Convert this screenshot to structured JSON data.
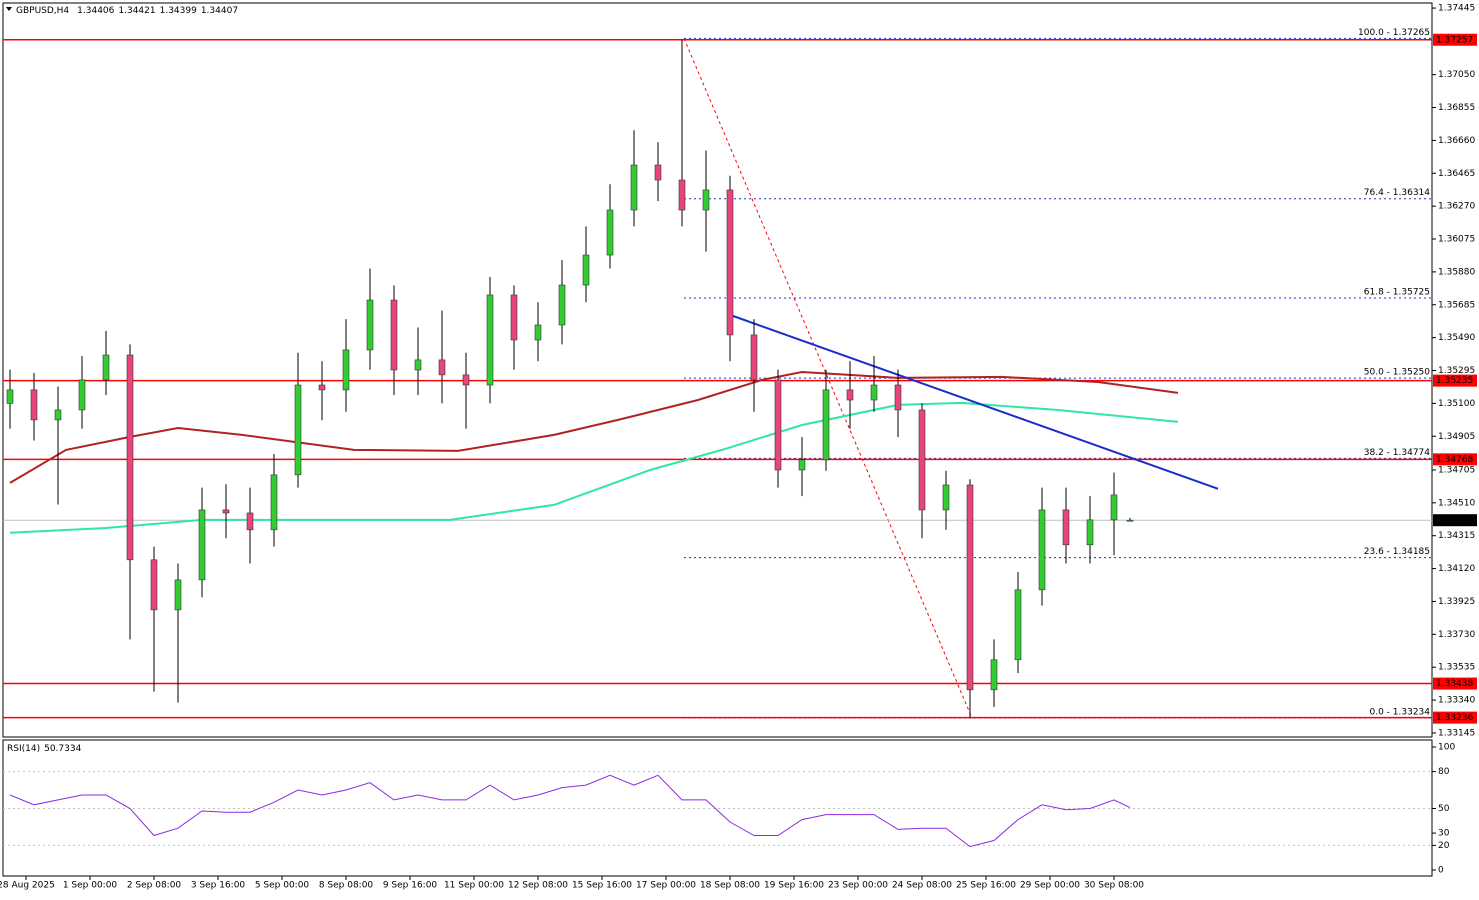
{
  "chart_data": [
    {
      "type": "candlestick",
      "title": "GBPUSD,H4",
      "x": [
        0,
        3,
        6,
        9,
        12,
        15,
        18,
        21,
        24,
        27,
        30,
        33,
        36,
        39,
        42,
        45,
        48,
        51,
        54,
        57,
        60,
        63,
        66,
        69,
        72,
        75,
        78,
        81,
        84,
        87,
        90,
        93,
        96,
        99,
        102,
        105,
        108,
        111,
        114,
        117,
        120,
        123,
        126,
        129,
        132,
        135,
        138,
        140
      ],
      "open": [
        1.351,
        1.3518,
        1.35002,
        1.35061,
        1.35239,
        1.35387,
        1.34172,
        1.33875,
        1.34053,
        1.34468,
        1.3445,
        1.3435,
        1.34676,
        1.35209,
        1.3518,
        1.35417,
        1.35713,
        1.35298,
        1.35358,
        1.35269,
        1.35209,
        1.35743,
        1.35476,
        1.35565,
        1.35802,
        1.3598,
        1.36247,
        1.36514,
        1.36425,
        1.36247,
        1.36366,
        1.35506,
        1.35239,
        1.34705,
        1.34765,
        1.3518,
        1.3512,
        1.35209,
        1.35061,
        1.34468,
        1.34616,
        1.33401,
        1.33579,
        1.33994,
        1.34468,
        1.34261,
        1.34409,
        1.34406
      ],
      "high": [
        1.353,
        1.3528,
        1.352,
        1.3538,
        1.3553,
        1.3545,
        1.3425,
        1.3415,
        1.346,
        1.3462,
        1.346,
        1.348,
        1.354,
        1.3535,
        1.356,
        1.359,
        1.358,
        1.3555,
        1.3565,
        1.354,
        1.3585,
        1.358,
        1.357,
        1.3595,
        1.3615,
        1.364,
        1.3672,
        1.3665,
        1.37257,
        1.366,
        1.3645,
        1.356,
        1.353,
        1.349,
        1.353,
        1.3535,
        1.3538,
        1.353,
        1.351,
        1.347,
        1.3465,
        1.337,
        1.341,
        1.346,
        1.346,
        1.3455,
        1.3469,
        1.34421
      ],
      "low": [
        1.3495,
        1.3488,
        1.345,
        1.3495,
        1.3515,
        1.337,
        1.3339,
        1.33325,
        1.3395,
        1.343,
        1.3415,
        1.3425,
        1.346,
        1.35,
        1.3505,
        1.353,
        1.3515,
        1.3515,
        1.351,
        1.3495,
        1.351,
        1.353,
        1.3535,
        1.3545,
        1.357,
        1.359,
        1.3615,
        1.363,
        1.3615,
        1.36,
        1.3535,
        1.3505,
        1.346,
        1.3455,
        1.347,
        1.3495,
        1.3505,
        1.349,
        1.343,
        1.3435,
        1.33236,
        1.333,
        1.335,
        1.339,
        1.3415,
        1.3415,
        1.342,
        1.34399
      ],
      "close": [
        1.3518,
        1.35002,
        1.35061,
        1.35239,
        1.35387,
        1.34172,
        1.33875,
        1.34053,
        1.34468,
        1.3445,
        1.3435,
        1.34676,
        1.35209,
        1.3518,
        1.35417,
        1.35713,
        1.35298,
        1.35358,
        1.35269,
        1.35209,
        1.35743,
        1.35476,
        1.35565,
        1.35802,
        1.3598,
        1.36247,
        1.36514,
        1.36425,
        1.36247,
        1.36366,
        1.35506,
        1.35239,
        1.34705,
        1.34765,
        1.3518,
        1.3512,
        1.35209,
        1.35061,
        1.34468,
        1.34616,
        1.33401,
        1.33579,
        1.33994,
        1.34468,
        1.34261,
        1.34409,
        1.34557,
        1.34407
      ],
      "up_color": "#32cd32",
      "down_color": "#e8457d",
      "xlim": [
        -0.875,
        177.75
      ],
      "ylim": [
        1.33121,
        1.37475
      ],
      "yticks": [
        1.37445,
        {
          "value": 1.3705,
          "label": "1.37050"
        },
        1.36855,
        {
          "value": 1.3666,
          "label": "1.36660"
        },
        1.36465,
        {
          "value": 1.3627,
          "label": "1.36270"
        },
        1.36075,
        {
          "value": 1.3588,
          "label": "1.35880"
        },
        1.35685,
        {
          "value": 1.3549,
          "label": "1.35490"
        },
        1.35295,
        {
          "value": 1.351,
          "label": "1.35100"
        },
        1.34905,
        1.34705,
        {
          "value": 1.3451,
          "label": "1.34510"
        },
        1.34315,
        {
          "value": 1.3412,
          "label": "1.34120"
        },
        1.33925,
        {
          "value": 1.3373,
          "label": "1.33730"
        },
        1.33535,
        {
          "value": 1.3334,
          "label": "1.33340"
        },
        1.33145
      ],
      "xticks": [
        {
          "value": 2,
          "label": "28 Aug 2025"
        },
        {
          "value": 10,
          "label": "1 Sep 00:00"
        },
        {
          "value": 18,
          "label": "2 Sep 08:00"
        },
        {
          "value": 26,
          "label": "3 Sep 16:00"
        },
        {
          "value": 34,
          "label": "5 Sep 00:00"
        },
        {
          "value": 42,
          "label": "8 Sep 08:00"
        },
        {
          "value": 50,
          "label": "9 Sep 16:00"
        },
        {
          "value": 58,
          "label": "11 Sep 00:00"
        },
        {
          "value": 66,
          "label": "12 Sep 08:00"
        },
        {
          "value": 74,
          "label": "15 Sep 16:00"
        },
        {
          "value": 82,
          "label": "17 Sep 00:00"
        },
        {
          "value": 90,
          "label": "18 Sep 08:00"
        },
        {
          "value": 98,
          "label": "19 Sep 16:00"
        },
        {
          "value": 106,
          "label": "23 Sep 00:00"
        },
        {
          "value": 114,
          "label": "24 Sep 08:00"
        },
        {
          "value": 122,
          "label": "25 Sep 16:00"
        },
        {
          "value": 130,
          "label": "29 Sep 00:00"
        },
        {
          "value": 138,
          "label": "30 Sep 08:00"
        }
      ],
      "moving_averages": [
        {
          "color": "#b22222",
          "x": [
            0,
            7,
            15,
            21,
            29,
            43,
            56,
            68,
            76,
            86,
            94,
            99,
            111,
            124,
            136,
            146
          ],
          "values": [
            1.34628,
            1.34824,
            1.34901,
            1.34954,
            1.34913,
            1.34824,
            1.34818,
            1.34913,
            1.35002,
            1.3512,
            1.35239,
            1.35286,
            1.35251,
            1.35257,
            1.35227,
            1.35162
          ]
        },
        {
          "color": "#2ee8a0",
          "x": [
            0,
            12,
            24,
            36,
            55,
            68,
            80,
            89,
            99,
            111,
            119,
            131,
            146
          ],
          "values": [
            1.34332,
            1.34361,
            1.34409,
            1.34409,
            1.34409,
            1.34498,
            1.34705,
            1.34824,
            1.34972,
            1.35091,
            1.35103,
            1.35061,
            1.3499
          ]
        }
      ],
      "levels": [
        1.37257,
        1.35235,
        1.34768,
        1.33438,
        1.33236
      ],
      "level_color": "#ff0000",
      "fibo": {
        "x": [
          84.25,
          120.25
        ],
        "color": "#ff0000",
        "line_color": "#2030c0",
        "levels": [
          {
            "value": 1.37265,
            "label": "100.0 - 1.37265"
          },
          {
            "value": 1.36314,
            "label": "76.4 - 1.36314"
          },
          {
            "value": 1.35725,
            "label": "61.8 - 1.35725"
          },
          {
            "value": 1.3525,
            "label": "50.0 - 1.35250"
          },
          {
            "value": 1.34774,
            "label": "38.2 - 1.34774"
          },
          {
            "value": 1.34185,
            "label": "23.6 - 1.34185"
          },
          {
            "value": 1.33234,
            "label": "0.0 - 1.33234"
          }
        ]
      },
      "trendline": {
        "x": [
          90,
          151
        ],
        "values": [
          1.35625,
          1.34593
        ],
        "color": "#1a2ecc"
      }
    },
    {
      "type": "line",
      "title": "RSI(14)",
      "values": [
        61,
        53,
        57,
        61,
        61,
        50,
        28,
        34,
        48,
        47,
        47,
        55,
        65,
        61,
        65,
        71,
        57,
        61,
        57,
        57,
        69,
        57,
        61,
        67,
        69,
        77,
        69,
        77,
        57,
        57,
        39,
        28,
        28,
        41,
        45,
        45,
        45,
        33,
        34,
        34,
        19,
        24,
        41,
        53,
        49,
        50,
        57,
        50.7334
      ],
      "color": "#8a2be2",
      "ylim": [
        -4.9,
        105.7
      ],
      "yticks": [
        100,
        80,
        50,
        30,
        20,
        0
      ],
      "levels": [
        80,
        50,
        20
      ]
    }
  ]
}
